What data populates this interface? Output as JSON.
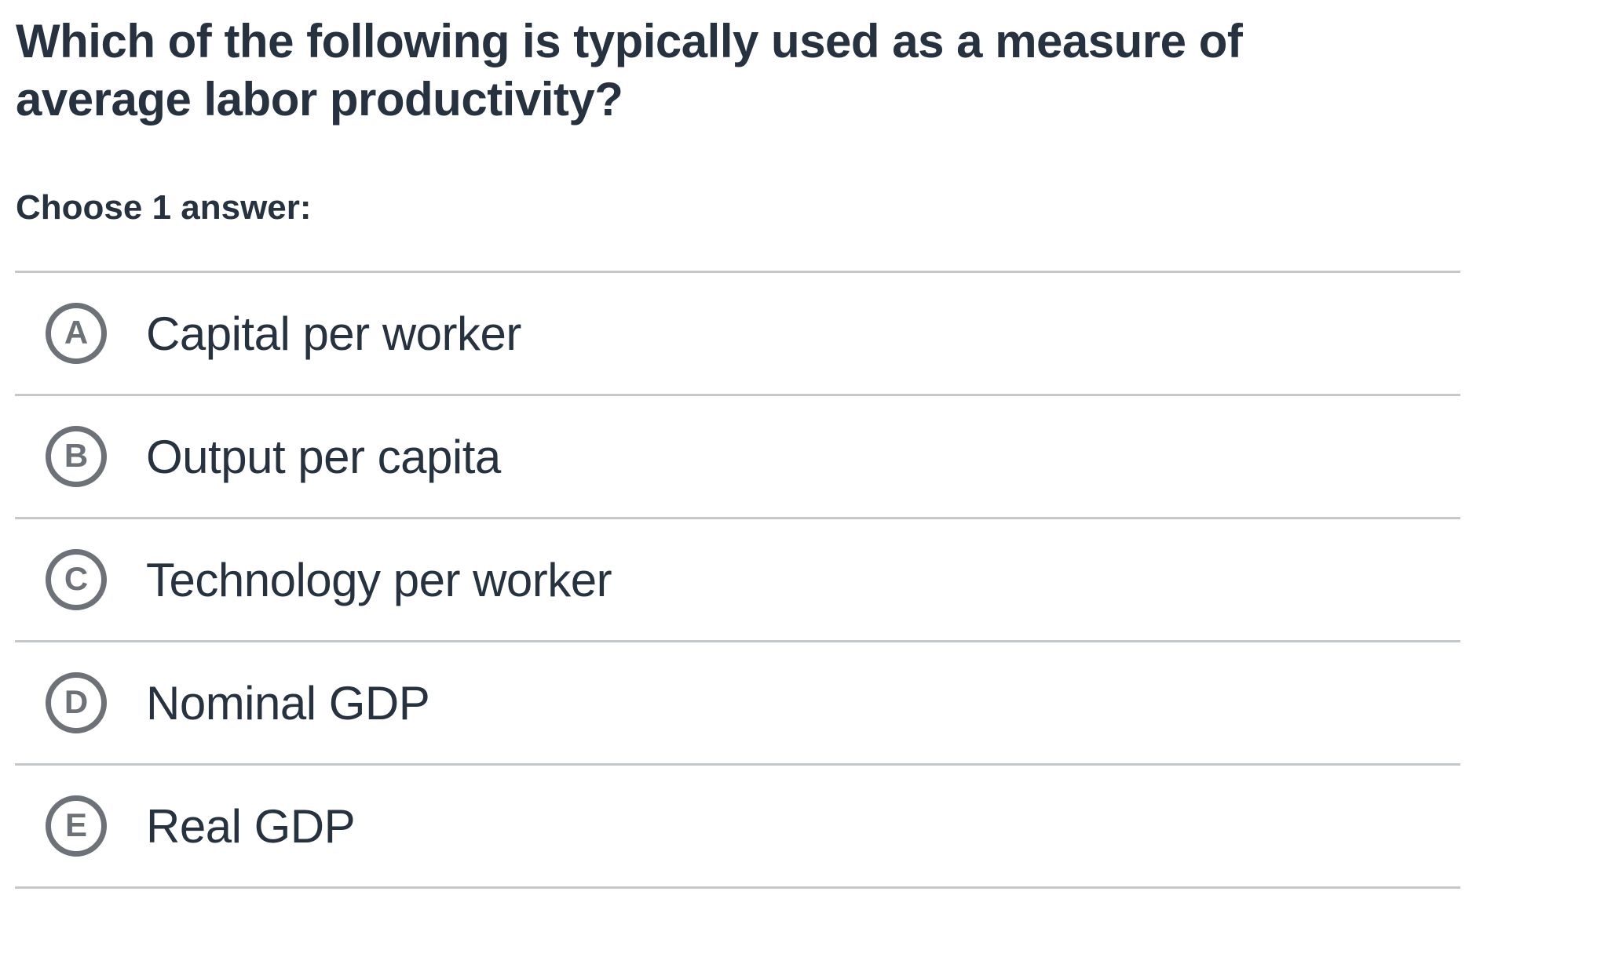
{
  "question": {
    "title": "Which of the following is typically used as a measure of average labor productivity?",
    "choose_label": "Choose 1 answer:"
  },
  "options": [
    {
      "letter": "A",
      "label": "Capital per worker"
    },
    {
      "letter": "B",
      "label": "Output per capita"
    },
    {
      "letter": "C",
      "label": "Technology per worker"
    },
    {
      "letter": "D",
      "label": "Nominal GDP"
    },
    {
      "letter": "E",
      "label": "Real GDP"
    }
  ],
  "colors": {
    "text": "#273240",
    "radio_circle": "#6d7178",
    "divider": "#c5c8ca",
    "background": "#ffffff"
  }
}
